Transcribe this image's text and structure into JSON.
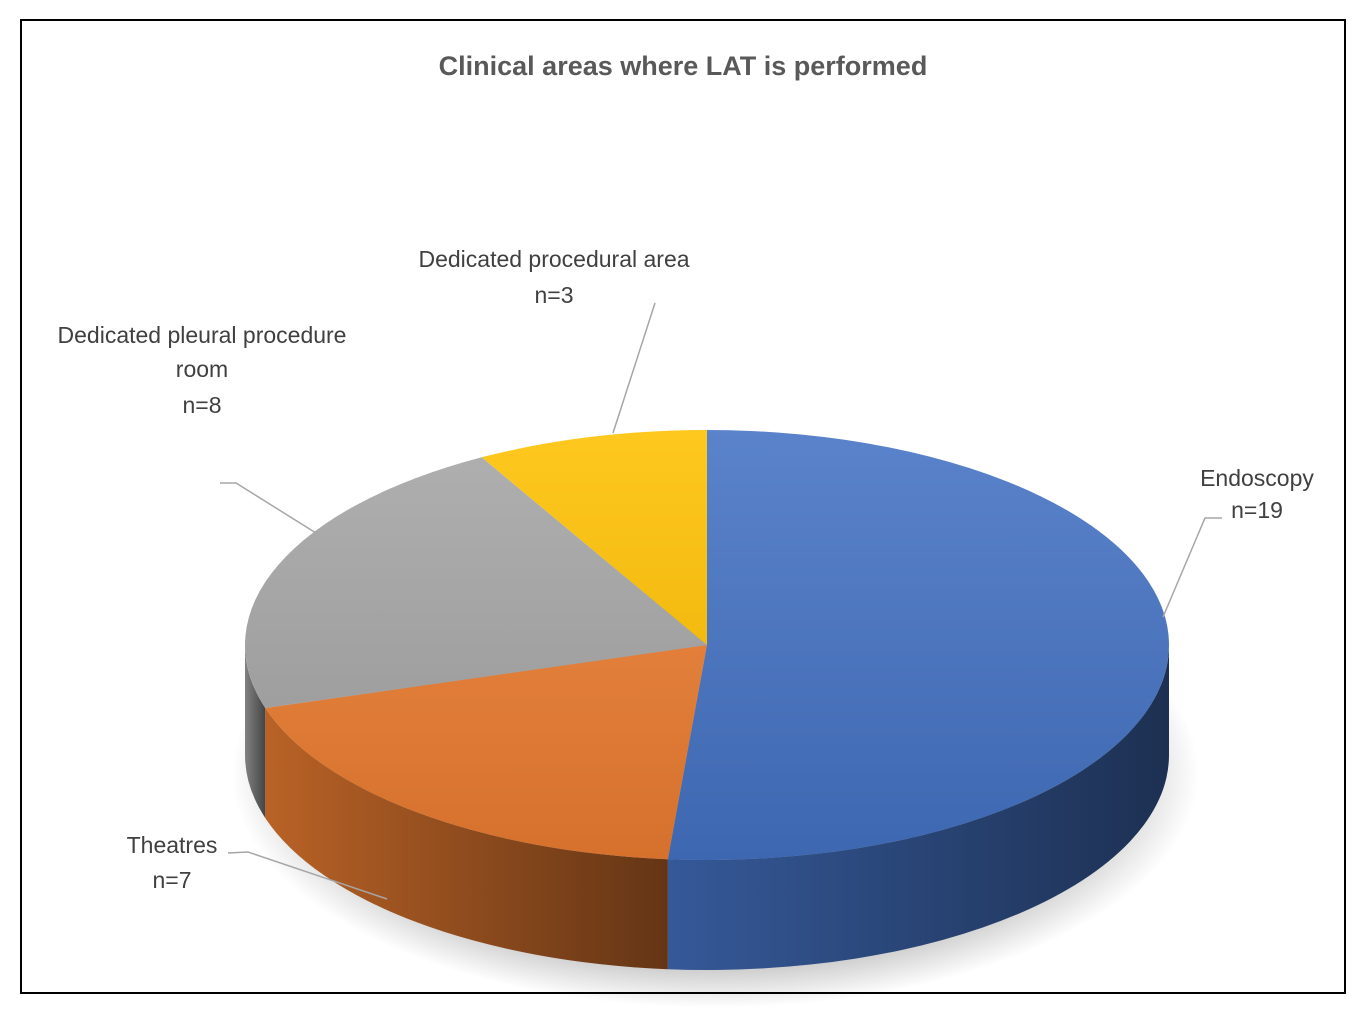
{
  "chart_data": {
    "type": "pie",
    "title": "Clinical areas where LAT is performed",
    "three_d": true,
    "slices": [
      {
        "name": "Endoscopy",
        "count_label": "n=19",
        "value": 19,
        "color": "#4472c4"
      },
      {
        "name": "Theatres",
        "count_label": "n=7",
        "value": 7,
        "color": "#ed7d31"
      },
      {
        "name": "Dedicated pleural procedure room",
        "count_label": "n=8",
        "value": 8,
        "color": "#a5a5a5"
      },
      {
        "name": "Dedicated procedural area",
        "count_label": "n=3",
        "value": 3,
        "color": "#ffc000"
      }
    ]
  }
}
